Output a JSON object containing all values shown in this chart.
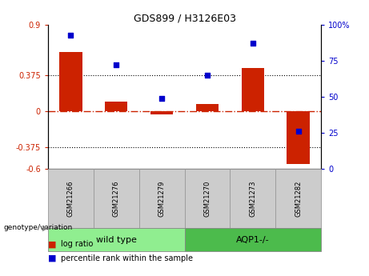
{
  "title": "GDS899 / H3126E03",
  "samples": [
    "GSM21266",
    "GSM21276",
    "GSM21279",
    "GSM21270",
    "GSM21273",
    "GSM21282"
  ],
  "log_ratio": [
    0.62,
    0.1,
    -0.03,
    0.08,
    0.45,
    -0.55
  ],
  "percentile_rank": [
    93,
    72,
    49,
    65,
    87,
    26
  ],
  "group_label": "genotype/variation",
  "bar_color": "#cc2200",
  "dot_color": "#0000cc",
  "ylim_left": [
    -0.6,
    0.9
  ],
  "ylim_right": [
    0,
    100
  ],
  "yticks_left": [
    -0.6,
    -0.375,
    0,
    0.375,
    0.9
  ],
  "yticks_right": [
    0,
    25,
    50,
    75,
    100
  ],
  "hlines": [
    0.375,
    -0.375
  ],
  "background_color": "#ffffff",
  "tick_label_color_left": "#cc2200",
  "tick_label_color_right": "#0000cc",
  "legend_items": [
    {
      "color": "#cc2200",
      "label": "log ratio"
    },
    {
      "color": "#0000cc",
      "label": "percentile rank within the sample"
    }
  ],
  "sample_box_color": "#cccccc",
  "group_box_color_wt": "#90ee90",
  "group_box_color_aqp": "#4cbb4c",
  "wt_label": "wild type",
  "aqp_label": "AQP1-/-",
  "bar_width": 0.5
}
